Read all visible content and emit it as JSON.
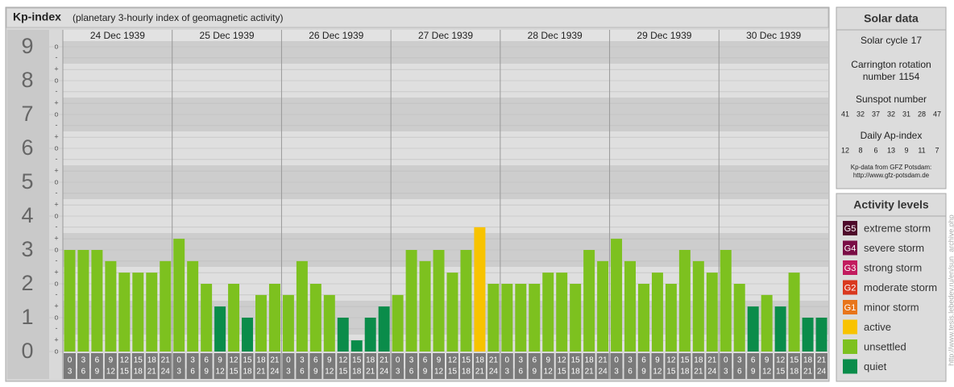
{
  "chart_data": {
    "type": "bar",
    "title": "Kp-index",
    "subtitle": "(planetary 3-hourly index of geomagnetic activity)",
    "days": [
      "24 Dec 1939",
      "25 Dec 1939",
      "26 Dec 1939",
      "27 Dec 1939",
      "28 Dec 1939",
      "29 Dec 1939",
      "30 Dec 1939"
    ],
    "hours": [
      [
        "0",
        "3"
      ],
      [
        "3",
        "6"
      ],
      [
        "6",
        "9"
      ],
      [
        "9",
        "12"
      ],
      [
        "12",
        "15"
      ],
      [
        "15",
        "18"
      ],
      [
        "18",
        "21"
      ],
      [
        "21",
        "24"
      ]
    ],
    "values": [
      3,
      3,
      3,
      2.67,
      2.33,
      2.33,
      2.33,
      2.67,
      3.33,
      2.67,
      2,
      1.33,
      2,
      1,
      1.67,
      2,
      1.67,
      2.67,
      2,
      1.67,
      1,
      0.33,
      1,
      1.33,
      1.67,
      3,
      2.67,
      3,
      2.33,
      3,
      3.67,
      2,
      2,
      2,
      2,
      2.33,
      2.33,
      2,
      3,
      2.67,
      3.33,
      2.67,
      2,
      2.33,
      2,
      3,
      2.67,
      2.33,
      3,
      2,
      1.33,
      1.67,
      1.33,
      2.33,
      1,
      1
    ],
    "colors": [
      "#7dc11f",
      "#7dc11f",
      "#7dc11f",
      "#7dc11f",
      "#7dc11f",
      "#7dc11f",
      "#7dc11f",
      "#7dc11f",
      "#7dc11f",
      "#7dc11f",
      "#7dc11f",
      "#0a8c4a",
      "#7dc11f",
      "#0a8c4a",
      "#7dc11f",
      "#7dc11f",
      "#7dc11f",
      "#7dc11f",
      "#7dc11f",
      "#7dc11f",
      "#0a8c4a",
      "#0a8c4a",
      "#0a8c4a",
      "#0a8c4a",
      "#7dc11f",
      "#7dc11f",
      "#7dc11f",
      "#7dc11f",
      "#7dc11f",
      "#7dc11f",
      "#f8c300",
      "#7dc11f",
      "#7dc11f",
      "#7dc11f",
      "#7dc11f",
      "#7dc11f",
      "#7dc11f",
      "#7dc11f",
      "#7dc11f",
      "#7dc11f",
      "#7dc11f",
      "#7dc11f",
      "#7dc11f",
      "#7dc11f",
      "#7dc11f",
      "#7dc11f",
      "#7dc11f",
      "#7dc11f",
      "#7dc11f",
      "#7dc11f",
      "#0a8c4a",
      "#7dc11f",
      "#0a8c4a",
      "#7dc11f",
      "#0a8c4a",
      "#0a8c4a"
    ],
    "ylim": [
      0,
      9.5
    ],
    "yticks": [
      0,
      1,
      2,
      3,
      4,
      5,
      6,
      7,
      8,
      9
    ],
    "minor_ticks": [
      {
        "value": 0,
        "label": "o"
      },
      {
        "value": 0.33,
        "label": "+"
      },
      {
        "value": 0.67,
        "label": "-"
      },
      {
        "value": 1,
        "label": "o"
      },
      {
        "value": 1.33,
        "label": "+"
      },
      {
        "value": 1.67,
        "label": "-"
      },
      {
        "value": 2,
        "label": "o"
      },
      {
        "value": 2.33,
        "label": "+"
      },
      {
        "value": 2.67,
        "label": "-"
      },
      {
        "value": 3,
        "label": "o"
      },
      {
        "value": 3.33,
        "label": "+"
      },
      {
        "value": 3.67,
        "label": "-"
      },
      {
        "value": 4,
        "label": "o"
      },
      {
        "value": 4.33,
        "label": "+"
      },
      {
        "value": 4.67,
        "label": "-"
      },
      {
        "value": 5,
        "label": "o"
      },
      {
        "value": 5.33,
        "label": "+"
      },
      {
        "value": 5.67,
        "label": "-"
      },
      {
        "value": 6,
        "label": "o"
      },
      {
        "value": 6.33,
        "label": "+"
      },
      {
        "value": 6.67,
        "label": "-"
      },
      {
        "value": 7,
        "label": "o"
      },
      {
        "value": 7.33,
        "label": "+"
      },
      {
        "value": 7.67,
        "label": "-"
      },
      {
        "value": 8,
        "label": "o"
      },
      {
        "value": 8.33,
        "label": "+"
      },
      {
        "value": 8.67,
        "label": "-"
      },
      {
        "value": 9,
        "label": "o"
      }
    ],
    "grid": true
  },
  "solar_data": {
    "title": "Solar data",
    "cycle_label": "Solar cycle",
    "cycle": 17,
    "carrington_label": [
      "Carrington rotation",
      "number"
    ],
    "carrington": 1154,
    "sunspot_label": "Sunspot number",
    "sunspots": [
      41,
      32,
      37,
      32,
      31,
      28,
      47
    ],
    "ap_label": "Daily Ap-index",
    "ap": [
      12,
      8,
      6,
      13,
      9,
      11,
      7
    ],
    "source": [
      "Kp-data from GFZ Potsdam:",
      "http://www.gfz-potsdam.de"
    ]
  },
  "activity_levels": {
    "title": "Activity levels",
    "items": [
      {
        "code": "G5",
        "label": "extreme storm",
        "color": "#4e0a2a"
      },
      {
        "code": "G4",
        "label": "severe storm",
        "color": "#7a0d45"
      },
      {
        "code": "G3",
        "label": "strong storm",
        "color": "#c21b5e"
      },
      {
        "code": "G2",
        "label": "moderate storm",
        "color": "#d9381e"
      },
      {
        "code": "G1",
        "label": "minor storm",
        "color": "#e8751a"
      },
      {
        "label": "active",
        "color": "#f8c300"
      },
      {
        "label": "unsettled",
        "color": "#7dc11f"
      },
      {
        "label": "quiet",
        "color": "#0a8c4a"
      }
    ]
  },
  "watermark": "http://www.tesis.lebedev.ru/en/sun_archive.php"
}
